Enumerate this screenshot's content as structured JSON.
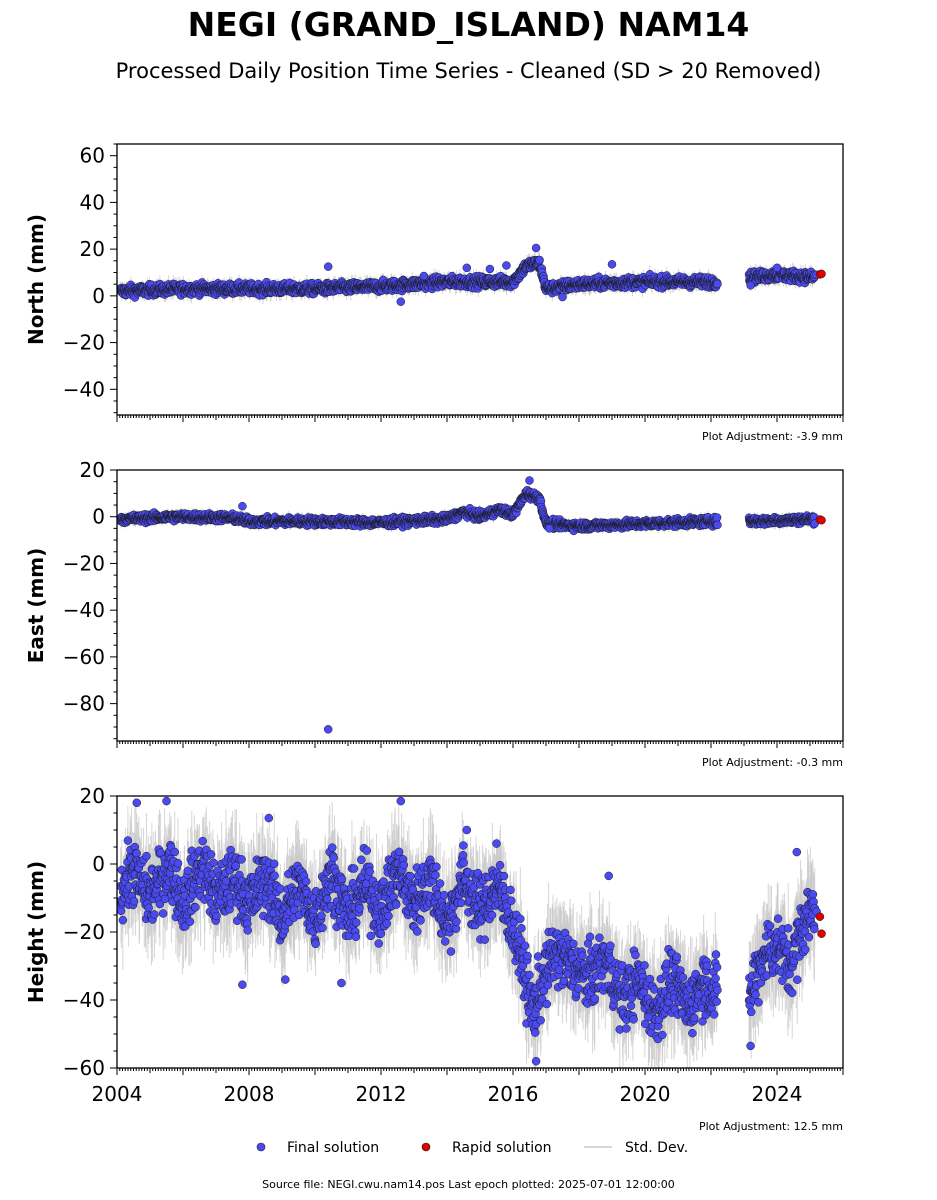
{
  "title": "NEGI (GRAND_ISLAND) NAM14",
  "subtitle": "Processed Daily Position Time Series - Cleaned (SD > 20 Removed)",
  "colors": {
    "final": "#4a4af2",
    "rapid": "#e00000",
    "stddev": "#c8c8c8",
    "outline": "#1a1a1a"
  },
  "legend": {
    "final_label": "Final solution",
    "rapid_label": "Rapid solution",
    "std_label": "Std. Dev."
  },
  "footer": "Source file: NEGI.cwu.nam14.pos  Last epoch plotted: 2025-07-01 12:00:00",
  "xaxis": {
    "range": [
      2004,
      2026
    ],
    "ticks": [
      2004,
      2008,
      2012,
      2016,
      2020,
      2024
    ],
    "tick_labels": [
      "2004",
      "2008",
      "2012",
      "2016",
      "2020",
      "2024"
    ]
  },
  "chart_data": [
    {
      "type": "scatter",
      "ylabel": "North (mm)",
      "ylim": [
        -51,
        65
      ],
      "yticks": [
        60,
        40,
        20,
        0,
        -20,
        -40
      ],
      "ytick_labels": [
        "60",
        "40",
        "20",
        "0",
        "−20",
        "−40"
      ],
      "adjustment": "Plot Adjustment: -3.9 mm",
      "trend": [
        [
          2004.1,
          2
        ],
        [
          2006,
          3
        ],
        [
          2008,
          3
        ],
        [
          2010,
          3
        ],
        [
          2012,
          4
        ],
        [
          2014,
          6
        ],
        [
          2016,
          6
        ],
        [
          2016.4,
          13
        ],
        [
          2016.8,
          14
        ],
        [
          2017.0,
          3
        ],
        [
          2018,
          5
        ],
        [
          2020,
          6
        ],
        [
          2022.1,
          6
        ],
        [
          2023.2,
          8
        ],
        [
          2024,
          9
        ],
        [
          2025.1,
          8
        ]
      ],
      "spread": 1.6,
      "outliers": [
        [
          2010.4,
          12.5
        ],
        [
          2012.6,
          -2.5
        ],
        [
          2013.3,
          8.5
        ],
        [
          2014.6,
          12
        ],
        [
          2015.3,
          11.5
        ],
        [
          2015.8,
          13
        ],
        [
          2016.7,
          20.5
        ],
        [
          2017.5,
          -0.5
        ],
        [
          2019.0,
          13.5
        ],
        [
          2023.2,
          4.5
        ],
        [
          2024.0,
          12
        ],
        [
          2025.2,
          9
        ]
      ],
      "rapid": [
        [
          2025.3,
          9.2
        ],
        [
          2025.35,
          9.4
        ]
      ],
      "gaps": [
        [
          2022.2,
          2023.15
        ]
      ]
    },
    {
      "type": "scatter",
      "ylabel": "East (mm)",
      "ylim": [
        -96,
        20
      ],
      "yticks": [
        20,
        0,
        -20,
        -40,
        -60,
        -80
      ],
      "ytick_labels": [
        "20",
        "0",
        "−20",
        "−40",
        "−60",
        "−80"
      ],
      "adjustment": "Plot Adjustment: -0.3 mm",
      "trend": [
        [
          2004.1,
          -1
        ],
        [
          2006,
          0
        ],
        [
          2007.5,
          -0.5
        ],
        [
          2008,
          -2
        ],
        [
          2010,
          -2
        ],
        [
          2012,
          -2.5
        ],
        [
          2014,
          -1
        ],
        [
          2014.5,
          2
        ],
        [
          2015,
          0
        ],
        [
          2015.6,
          3
        ],
        [
          2016,
          1
        ],
        [
          2016.4,
          10
        ],
        [
          2016.8,
          8
        ],
        [
          2017.0,
          -3
        ],
        [
          2018,
          -4
        ],
        [
          2020,
          -3
        ],
        [
          2022.1,
          -2
        ],
        [
          2023.2,
          -2
        ],
        [
          2025.1,
          -1
        ]
      ],
      "spread": 1.2,
      "outliers": [
        [
          2010.4,
          -91
        ],
        [
          2007.8,
          4.5
        ],
        [
          2016.5,
          15.5
        ],
        [
          2017.1,
          -5
        ]
      ],
      "rapid": [
        [
          2025.3,
          -1.2
        ],
        [
          2025.35,
          -1.5
        ]
      ],
      "gaps": [
        [
          2022.2,
          2023.15
        ]
      ]
    },
    {
      "type": "scatter",
      "ylabel": "Height (mm)",
      "ylim": [
        -60,
        20
      ],
      "yticks": [
        20,
        0,
        -20,
        -40,
        -60
      ],
      "ytick_labels": [
        "20",
        "0",
        "−20",
        "−40",
        "−60"
      ],
      "adjustment": "Plot Adjustment: 12.5 mm",
      "trend": [
        [
          2004.1,
          -8
        ],
        [
          2004.5,
          -2
        ],
        [
          2005,
          -10
        ],
        [
          2005.6,
          0
        ],
        [
          2006,
          -12
        ],
        [
          2006.6,
          0
        ],
        [
          2007,
          -10
        ],
        [
          2007.6,
          -4
        ],
        [
          2008,
          -12
        ],
        [
          2008.5,
          -4
        ],
        [
          2009,
          -16
        ],
        [
          2009.5,
          -6
        ],
        [
          2010,
          -16
        ],
        [
          2010.5,
          -2
        ],
        [
          2011,
          -16
        ],
        [
          2011.5,
          -6
        ],
        [
          2012,
          -14
        ],
        [
          2012.5,
          -2
        ],
        [
          2013,
          -12
        ],
        [
          2013.5,
          -4
        ],
        [
          2014,
          -18
        ],
        [
          2014.5,
          -4
        ],
        [
          2015,
          -14
        ],
        [
          2015.5,
          -6
        ],
        [
          2016,
          -18
        ],
        [
          2016.3,
          -30
        ],
        [
          2016.6,
          -44
        ],
        [
          2016.9,
          -34
        ],
        [
          2017.3,
          -26
        ],
        [
          2017.8,
          -30
        ],
        [
          2018.3,
          -34
        ],
        [
          2018.8,
          -28
        ],
        [
          2019.3,
          -40
        ],
        [
          2019.8,
          -34
        ],
        [
          2020.3,
          -44
        ],
        [
          2020.8,
          -34
        ],
        [
          2021.3,
          -42
        ],
        [
          2021.8,
          -34
        ],
        [
          2022.1,
          -38
        ],
        [
          2023.2,
          -38
        ],
        [
          2023.6,
          -26
        ],
        [
          2024.0,
          -24
        ],
        [
          2024.4,
          -30
        ],
        [
          2024.8,
          -18
        ],
        [
          2025.1,
          -12
        ]
      ],
      "spread": 6.5,
      "outliers": [
        [
          2004.6,
          18
        ],
        [
          2005.5,
          18.5
        ],
        [
          2007.8,
          -35.5
        ],
        [
          2008.6,
          13.5
        ],
        [
          2009.1,
          -34
        ],
        [
          2010.8,
          -35
        ],
        [
          2012.6,
          18.5
        ],
        [
          2014.6,
          10
        ],
        [
          2015.5,
          6
        ],
        [
          2016.7,
          -58
        ],
        [
          2018.9,
          -3.5
        ],
        [
          2020.1,
          -45
        ],
        [
          2023.2,
          -53.5
        ],
        [
          2024.6,
          3.5
        ],
        [
          2025.2,
          -14
        ]
      ],
      "rapid": [
        [
          2025.3,
          -15.5
        ],
        [
          2025.35,
          -20.5
        ]
      ],
      "gaps": [
        [
          2022.2,
          2023.15
        ]
      ]
    }
  ]
}
